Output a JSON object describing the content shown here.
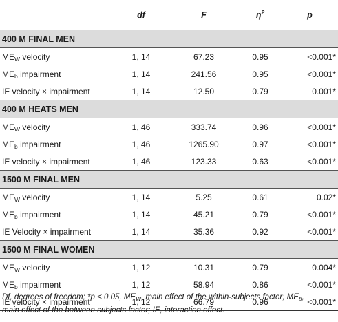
{
  "columns": {
    "df": "df",
    "F": "F",
    "eta": "η",
    "eta_sup": "2",
    "p": "p"
  },
  "sections": [
    {
      "title": "400 M FINAL MEN",
      "rows": [
        {
          "pre": "ME",
          "sub": "W",
          "post": " velocity",
          "df": "1, 14",
          "F": "67.23",
          "eta": "0.95",
          "p": "<0.001*"
        },
        {
          "pre": "ME",
          "sub": "b",
          "post": " impairment",
          "df": "1, 14",
          "F": "241.56",
          "eta": "0.95",
          "p": "<0.001*"
        },
        {
          "pre": "IE velocity × impairment",
          "sub": "",
          "post": "",
          "df": "1, 14",
          "F": "12.50",
          "eta": "0.79",
          "p": "0.001*"
        }
      ]
    },
    {
      "title": "400 M HEATS MEN",
      "rows": [
        {
          "pre": "ME",
          "sub": "W",
          "post": " velocity",
          "df": "1, 46",
          "F": "333.74",
          "eta": "0.96",
          "p": "<0.001*"
        },
        {
          "pre": "ME",
          "sub": "b",
          "post": " impairment",
          "df": "1, 46",
          "F": "1265.90",
          "eta": "0.97",
          "p": "<0.001*"
        },
        {
          "pre": "IE velocity × impairment",
          "sub": "",
          "post": "",
          "df": "1, 46",
          "F": "123.33",
          "eta": "0.63",
          "p": "<0.001*"
        }
      ]
    },
    {
      "title": "1500 M FINAL MEN",
      "rows": [
        {
          "pre": "ME",
          "sub": "W",
          "post": " velocity",
          "df": "1, 14",
          "F": "5.25",
          "eta": "0.61",
          "p": "0.02*"
        },
        {
          "pre": "ME",
          "sub": "b",
          "post": " impairment",
          "df": "1, 14",
          "F": "45.21",
          "eta": "0.79",
          "p": "<0.001*"
        },
        {
          "pre": "IE Velocity × impairment",
          "sub": "",
          "post": "",
          "df": "1, 14",
          "F": "35.36",
          "eta": "0.92",
          "p": "<0.001*"
        }
      ]
    },
    {
      "title": "1500 M FINAL WOMEN",
      "rows": [
        {
          "pre": "ME",
          "sub": "W",
          "post": " velocity",
          "df": "1, 12",
          "F": "10.31",
          "eta": "0.79",
          "p": "0.004*"
        },
        {
          "pre": "ME",
          "sub": "b",
          "post": " impairment",
          "df": "1, 12",
          "F": "58.94",
          "eta": "0.86",
          "p": "<0.001*"
        },
        {
          "pre": "IE velocity × impairment",
          "sub": "",
          "post": "",
          "df": "1, 12",
          "F": "66.79",
          "eta": "0.96",
          "p": "<0.001*"
        }
      ]
    }
  ],
  "footnote": {
    "a": "Df, degrees of freedom; *p < 0.05, ME",
    "a_sub": "W",
    "b": ", main effect of the within-subjects factor; ME",
    "b_sub": "b",
    "c": ",",
    "d": "main effect of the between subjects factor; IE, interaction effect."
  }
}
